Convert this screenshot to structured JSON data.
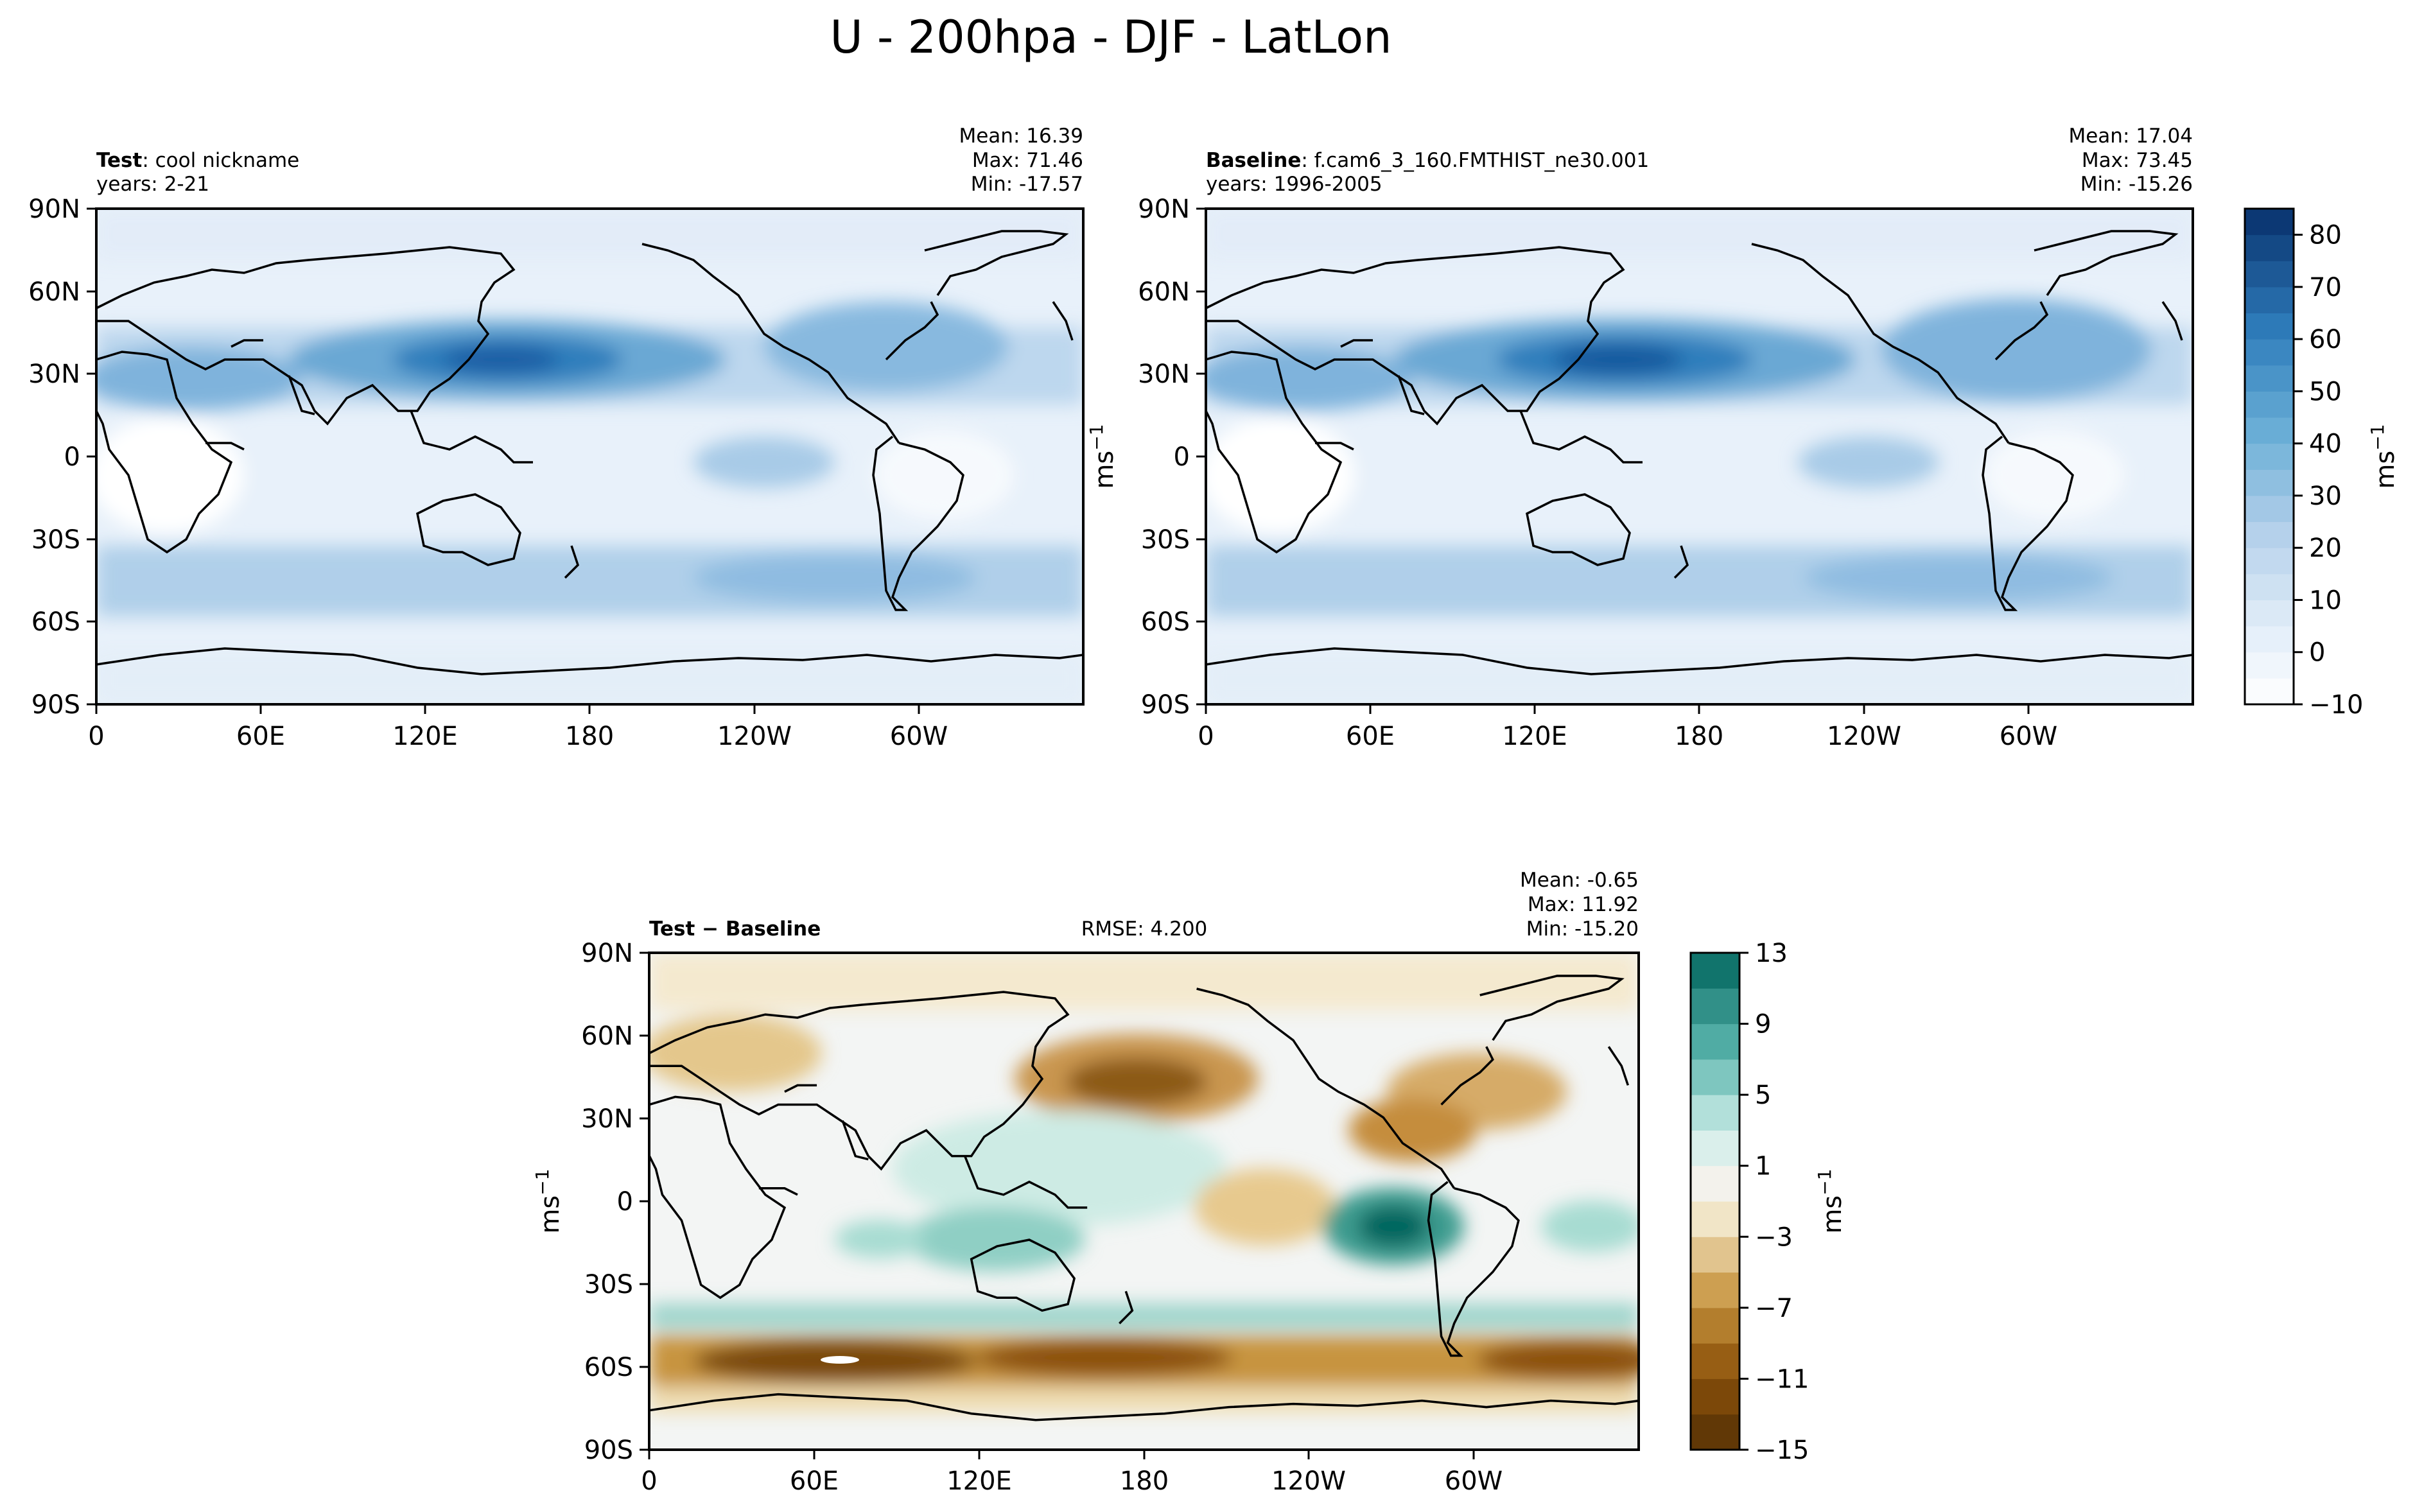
{
  "figure": {
    "title": "U - 200hpa - DJF - LatLon"
  },
  "chart_data": [
    {
      "type": "heatmap",
      "panel": "test",
      "label_bold": "Test",
      "label_text": ": cool nickname",
      "years": "years: 2-21",
      "stats": {
        "mean": "Mean: 16.39",
        "max": "Max: 71.46",
        "min": "Min: -17.57"
      },
      "x_ticks": [
        "0",
        "60E",
        "120E",
        "180",
        "120W",
        "60W"
      ],
      "y_ticks": [
        "90N",
        "60N",
        "30N",
        "0",
        "30S",
        "60S",
        "90S"
      ],
      "xlim": [
        0,
        360
      ],
      "ylim": [
        -90,
        90
      ],
      "colormap": "blues",
      "jets": [
        {
          "lon": 150,
          "lat": 33,
          "value": 72
        },
        {
          "lon": 290,
          "lat": 35,
          "value": 45
        },
        {
          "lon": 60,
          "lat": 28,
          "value": 40
        }
      ]
    },
    {
      "type": "heatmap",
      "panel": "baseline",
      "label_bold": "Baseline",
      "label_text": ": f.cam6_3_160.FMTHIST_ne30.001",
      "years": "years: 1996-2005",
      "stats": {
        "mean": "Mean: 17.04",
        "max": "Max: 73.45",
        "min": "Min: -15.26"
      },
      "x_ticks": [
        "0",
        "60E",
        "120E",
        "180",
        "120W",
        "60W"
      ],
      "y_ticks": [
        "90N",
        "60N",
        "30N",
        "0",
        "30S",
        "60S",
        "90S"
      ],
      "xlim": [
        0,
        360
      ],
      "ylim": [
        -90,
        90
      ],
      "colormap": "blues",
      "colorbar": {
        "ticks": [
          "80",
          "70",
          "60",
          "50",
          "40",
          "30",
          "20",
          "10",
          "0",
          "−10"
        ],
        "tick_values": [
          80,
          70,
          60,
          50,
          40,
          30,
          20,
          10,
          0,
          -10
        ],
        "range": [
          -10,
          85
        ],
        "unit": "ms",
        "unit_exp": "−1"
      },
      "jets": [
        {
          "lon": 155,
          "lat": 34,
          "value": 73
        },
        {
          "lon": 295,
          "lat": 33,
          "value": 48
        },
        {
          "lon": 60,
          "lat": 27,
          "value": 40
        }
      ]
    },
    {
      "type": "heatmap",
      "panel": "difference",
      "label_bold": "Test − Baseline",
      "rmse": "RMSE: 4.200",
      "stats": {
        "mean": "Mean: -0.65",
        "max": "Max: 11.92",
        "min": "Min: -15.20"
      },
      "x_ticks": [
        "0",
        "60E",
        "120E",
        "180",
        "120W",
        "60W"
      ],
      "y_ticks": [
        "90N",
        "60N",
        "30N",
        "0",
        "30S",
        "60S",
        "90S"
      ],
      "xlim": [
        0,
        360
      ],
      "ylim": [
        -90,
        90
      ],
      "colormap": "brbg",
      "y_unit": "ms",
      "y_unit_exp": "−1",
      "colorbar": {
        "ticks": [
          "13",
          "9",
          "5",
          "1",
          "−3",
          "−7",
          "−11",
          "−15"
        ],
        "tick_values": [
          13,
          9,
          5,
          1,
          -3,
          -7,
          -11,
          -15
        ],
        "range": [
          -15,
          13
        ],
        "unit": "ms",
        "unit_exp": "−1"
      }
    }
  ],
  "extra_unit": {
    "text": "ms",
    "exp": "−1"
  }
}
